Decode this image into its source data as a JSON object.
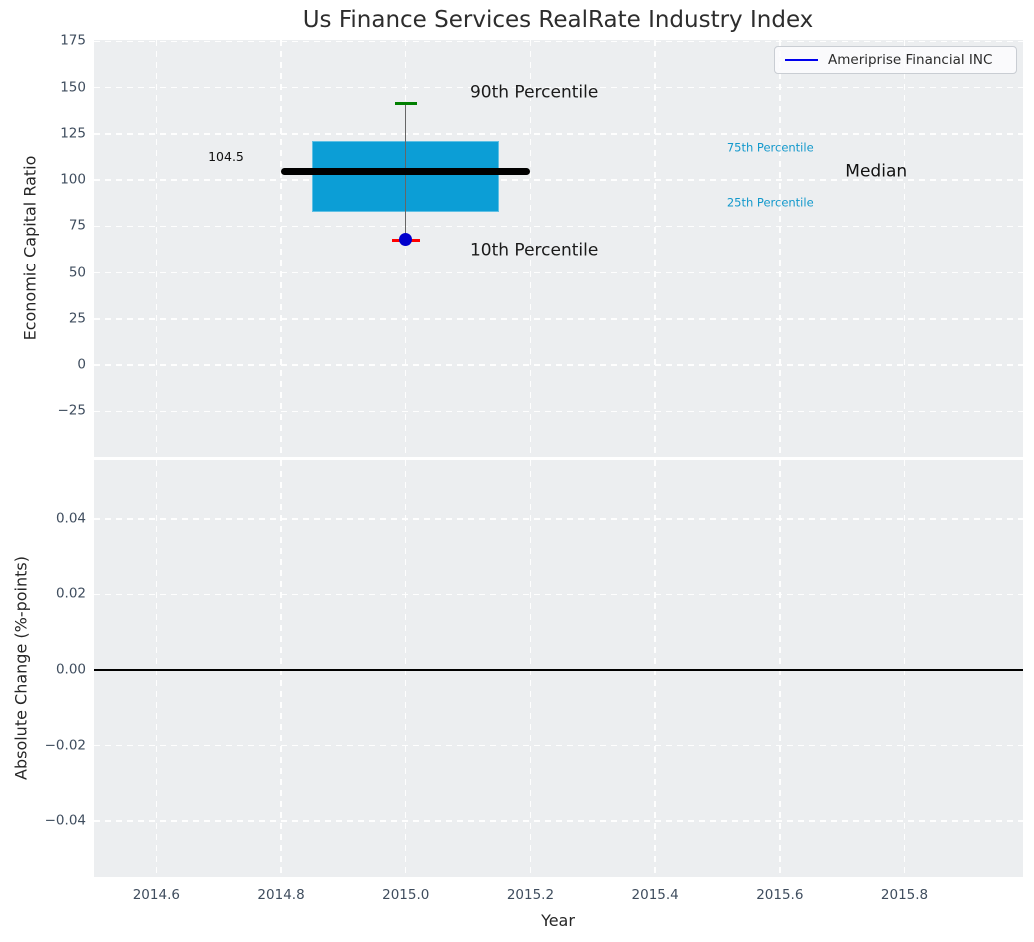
{
  "title": "Us Finance Services RealRate Industry Index",
  "legend": {
    "label": "Ameriprise Financial INC",
    "line_color": "#0000ee",
    "position": "upper right"
  },
  "colors": {
    "plot_bg": "#eceef0",
    "grid": "#ffffff",
    "tick_label": "#3f4d5e",
    "text": "#262626",
    "box_fill": "#0c9ed6",
    "median_line": "#000000",
    "whisker": "#666666",
    "cap_90th": "#007f00",
    "cap_10th": "#ff0000",
    "company_dot": "#0000cc",
    "percentile_label": "#1499cc",
    "zero_line": "#000000"
  },
  "chart_data": [
    {
      "type": "boxplot",
      "title": "Us Finance Services RealRate Industry Index",
      "ylabel": "Economic Capital Ratio",
      "xlim": [
        2014.5,
        2015.99
      ],
      "ylim": [
        -49.7,
        175.7
      ],
      "grid": true,
      "xticks": [
        2014.6,
        2014.8,
        2015.0,
        2015.2,
        2015.4,
        2015.6,
        2015.8
      ],
      "xtick_labels": [
        "2014.6",
        "2014.8",
        "2015.0",
        "2015.2",
        "2015.4",
        "2015.6",
        "2015.8"
      ],
      "yticks": [
        175,
        150,
        125,
        100,
        75,
        50,
        25,
        0,
        -25
      ],
      "ytick_labels": [
        "175",
        "150",
        "125",
        "100",
        "75",
        "50",
        "25",
        "0",
        "−25"
      ],
      "box": {
        "x": 2015.0,
        "box_left": 2014.85,
        "box_right": 2015.15,
        "median_left": 2014.8,
        "median_right": 2015.2,
        "p10": 67.5,
        "p25": 82.5,
        "median": 104.5,
        "p75": 121,
        "p90": 141.5
      },
      "series": [
        {
          "name": "Ameriprise Financial INC",
          "x": [
            2015.0
          ],
          "y": [
            68
          ]
        }
      ],
      "annotations": [
        {
          "text": "104.5",
          "x": 2014.683,
          "y": 112.7,
          "size": 12.5,
          "color": "#111111"
        },
        {
          "text": "90th Percentile",
          "x": 2015.103,
          "y": 147.0,
          "size": 17,
          "color": "#1a1a1a"
        },
        {
          "text": "10th Percentile",
          "x": 2015.103,
          "y": 61.6,
          "size": 17,
          "color": "#1a1a1a"
        },
        {
          "text": "75th Percentile",
          "x": 2015.515,
          "y": 117.3,
          "size": 11.5,
          "color": "#1499cc"
        },
        {
          "text": "25th Percentile",
          "x": 2015.515,
          "y": 87.6,
          "size": 11.5,
          "color": "#1499cc"
        },
        {
          "text": "Median",
          "x": 2015.705,
          "y": 104.3,
          "size": 17,
          "color": "#111111"
        }
      ]
    },
    {
      "type": "line",
      "ylabel": "Absolute Change (%-points)",
      "xlabel": "Year",
      "xlim": [
        2014.5,
        2015.99
      ],
      "ylim": [
        -0.0548,
        0.0556
      ],
      "grid": true,
      "xticks": [
        2014.6,
        2014.8,
        2015.0,
        2015.2,
        2015.4,
        2015.6,
        2015.8
      ],
      "xtick_labels": [
        "2014.6",
        "2014.8",
        "2015.0",
        "2015.2",
        "2015.4",
        "2015.6",
        "2015.8"
      ],
      "yticks": [
        0.04,
        0.02,
        0.0,
        -0.02,
        -0.04
      ],
      "ytick_labels": [
        "0.04",
        "0.02",
        "0.00",
        "−0.02",
        "−0.04"
      ],
      "zero_line": 0.0,
      "series": []
    }
  ]
}
